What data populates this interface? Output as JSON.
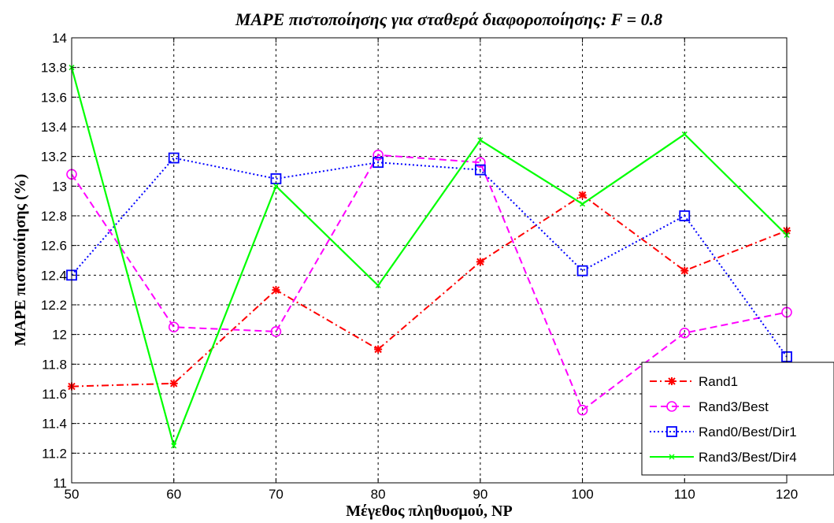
{
  "chart_data": {
    "type": "line",
    "title": "MAPE πιστοποίησης για σταθερά διαφοροποίησης: F = 0.8",
    "xlabel": "Μέγεθος πληθυσμού, NP",
    "ylabel": "MAPE πιστοποίησης (%)",
    "x": [
      50,
      60,
      70,
      80,
      90,
      100,
      110,
      120
    ],
    "xlim": [
      50,
      120
    ],
    "ylim": [
      11,
      14
    ],
    "xticks": [
      "50",
      "60",
      "70",
      "80",
      "90",
      "100",
      "110",
      "120"
    ],
    "yticks": [
      "11",
      "11.2",
      "11.4",
      "11.6",
      "11.8",
      "12",
      "12.2",
      "12.4",
      "12.6",
      "12.8",
      "13",
      "13.2",
      "13.4",
      "13.6",
      "13.8",
      "14"
    ],
    "grid": true,
    "legend_position": "bottom-right",
    "series": [
      {
        "name": "Rand1",
        "color": "#ff0000",
        "line_style": "dash-dot",
        "marker": "star",
        "values": [
          11.65,
          11.67,
          12.3,
          11.9,
          12.49,
          12.94,
          12.43,
          12.7
        ]
      },
      {
        "name": "Rand3/Best",
        "color": "#ff00ff",
        "line_style": "dashed",
        "marker": "circle",
        "values": [
          13.08,
          12.05,
          12.02,
          13.21,
          13.16,
          11.49,
          12.01,
          12.15
        ]
      },
      {
        "name": "Rand0/Best/Dir1",
        "color": "#0000ff",
        "line_style": "dotted",
        "marker": "square",
        "values": [
          12.4,
          13.19,
          13.05,
          13.16,
          13.11,
          12.43,
          12.8,
          11.85
        ]
      },
      {
        "name": "Rand3/Best/Dir4",
        "color": "#00ff00",
        "line_style": "solid",
        "marker": "x",
        "values": [
          13.8,
          11.25,
          13.0,
          12.33,
          13.31,
          12.88,
          13.35,
          12.67
        ]
      }
    ]
  }
}
